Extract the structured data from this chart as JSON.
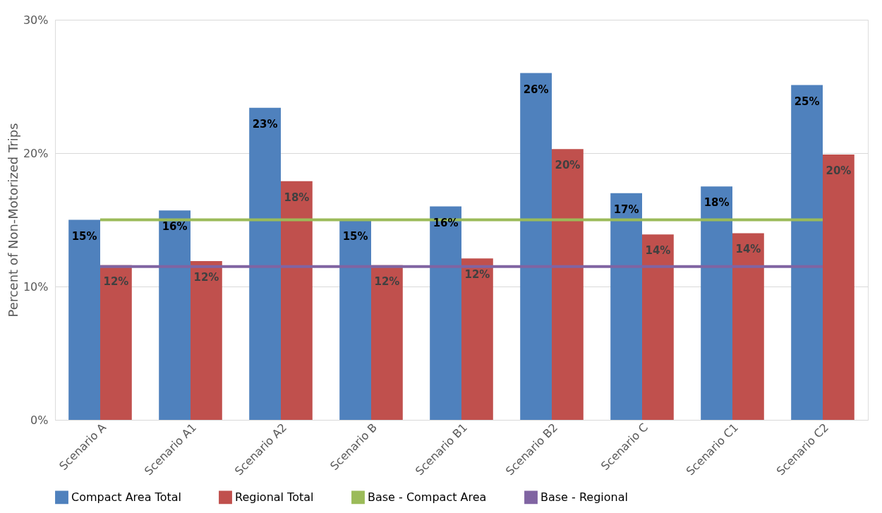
{
  "chart_data": {
    "type": "bar",
    "ylabel": "Percent of Non-Motorized Trips",
    "categories": [
      "Scenario A",
      "Scenario A1",
      "Scenario A2",
      "Scenario B",
      "Scenario B1",
      "Scenario B2",
      "Scenario C",
      "Scenario C1",
      "Scenario C2"
    ],
    "series": [
      {
        "name": "Compact Area Total",
        "color": "#4f81bd",
        "values": [
          15.0,
          15.7,
          23.4,
          15.0,
          16.0,
          26.0,
          17.0,
          17.5,
          25.1
        ],
        "value_labels": [
          "15%",
          "16%",
          "23%",
          "15%",
          "16%",
          "26%",
          "17%",
          "18%",
          "25%"
        ]
      },
      {
        "name": "Regional Total",
        "color": "#c0504d",
        "values": [
          11.6,
          11.9,
          17.9,
          11.6,
          12.1,
          20.3,
          13.9,
          14.0,
          19.9
        ],
        "value_labels": [
          "12%",
          "12%",
          "18%",
          "12%",
          "12%",
          "20%",
          "14%",
          "14%",
          "20%"
        ]
      },
      {
        "name": "Base - Compact Area",
        "type": "line",
        "color": "#9bbb59",
        "values": [
          15.0,
          15.0,
          15.0,
          15.0,
          15.0,
          15.0,
          15.0,
          15.0,
          15.0
        ]
      },
      {
        "name": "Base - Regional",
        "type": "line",
        "color": "#8064a2",
        "values": [
          11.5,
          11.5,
          11.5,
          11.5,
          11.5,
          11.5,
          11.5,
          11.5,
          11.5
        ]
      }
    ],
    "ylim": [
      0,
      30
    ],
    "yticks": [
      {
        "value": 0,
        "label": "0%"
      },
      {
        "value": 10,
        "label": "10%"
      },
      {
        "value": 20,
        "label": "20%"
      },
      {
        "value": 30,
        "label": "30%"
      }
    ],
    "grid": "y",
    "legend": "bottom"
  }
}
